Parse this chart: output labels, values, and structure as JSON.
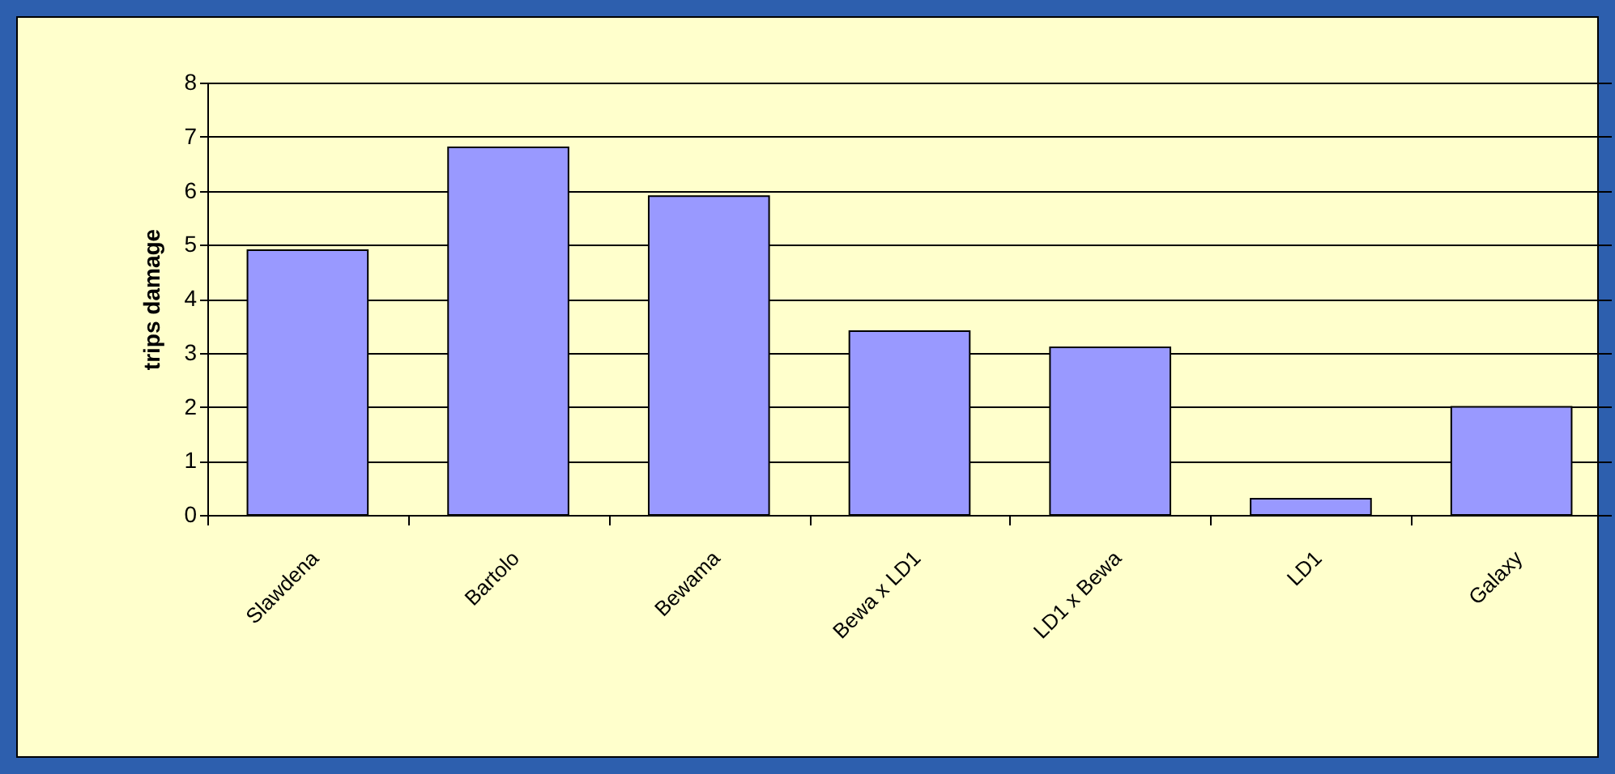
{
  "chart_data": {
    "type": "bar",
    "ylabel": "trips damage",
    "categories": [
      "Slawdena",
      "Bartolo",
      "Bewama",
      "Bewa x LD1",
      "LD1 x Bewa",
      "LD1",
      "Galaxy"
    ],
    "values": [
      4.9,
      6.8,
      5.9,
      3.4,
      3.1,
      0.3,
      2.0
    ],
    "color": "#9999ff",
    "ylim": [
      0,
      8
    ],
    "yticks": [
      0,
      1,
      2,
      3,
      4,
      5,
      6,
      7,
      8
    ],
    "grid": "y"
  }
}
